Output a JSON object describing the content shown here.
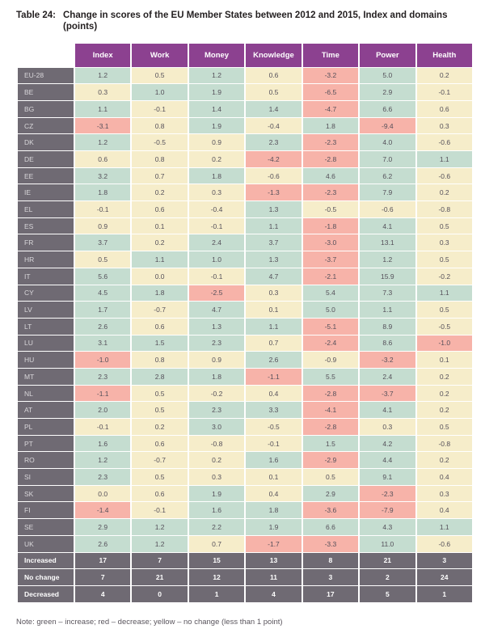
{
  "title": {
    "label": "Table 24:",
    "text": "Change in scores of the EU Member States between 2012 and 2015, Index and domains (points)"
  },
  "note": "Note: green – increase; red – decrease; yellow – no change (less than 1 point)",
  "colors": {
    "header_bg": "#8c4190",
    "header_text": "#ffffff",
    "label_bg": "#6f6a73",
    "label_text": "#d9d7da",
    "cell_text": "#55505a",
    "summary_text": "#ffffff",
    "increase": "#c5ddd0",
    "decrease": "#f7b3a9",
    "no_change": "#f6edca"
  },
  "chart_data": {
    "type": "table",
    "title": "Change in scores of the EU Member States between 2012 and 2015, Index and domains (points)",
    "columns": [
      "Index",
      "Work",
      "Money",
      "Knowledge",
      "Time",
      "Power",
      "Health"
    ],
    "color_rule": {
      "green": "value >= 1 (increase)",
      "red": "value <= -1 (decrease)",
      "yellow": "abs(value) < 1 (no change)"
    },
    "rows": [
      {
        "label": "EU-28",
        "values": [
          "1.2",
          "0.5",
          "1.2",
          "0.6",
          "-3.2",
          "5.0",
          "0.2"
        ]
      },
      {
        "label": "BE",
        "values": [
          "0.3",
          "1.0",
          "1.9",
          "0.5",
          "-6.5",
          "2.9",
          "-0.1"
        ]
      },
      {
        "label": "BG",
        "values": [
          "1.1",
          "-0.1",
          "1.4",
          "1.4",
          "-4.7",
          "6.6",
          "0.6"
        ]
      },
      {
        "label": "CZ",
        "values": [
          "-3.1",
          "0.8",
          "1.9",
          "-0.4",
          "1.8",
          "-9.4",
          "0.3"
        ]
      },
      {
        "label": "DK",
        "values": [
          "1.2",
          "-0.5",
          "0.9",
          "2.3",
          "-2.3",
          "4.0",
          "-0.6"
        ]
      },
      {
        "label": "DE",
        "values": [
          "0.6",
          "0.8",
          "0.2",
          "-4.2",
          "-2.8",
          "7.0",
          "1.1"
        ]
      },
      {
        "label": "EE",
        "values": [
          "3.2",
          "0.7",
          "1.8",
          "-0.6",
          "4.6",
          "6.2",
          "-0.6"
        ]
      },
      {
        "label": "IE",
        "values": [
          "1.8",
          "0.2",
          "0.3",
          "-1.3",
          "-2.3",
          "7.9",
          "0.2"
        ]
      },
      {
        "label": "EL",
        "values": [
          "-0.1",
          "0.6",
          "-0.4",
          "1.3",
          "-0.5",
          "-0.6",
          "-0.8"
        ]
      },
      {
        "label": "ES",
        "values": [
          "0.9",
          "0.1",
          "-0.1",
          "1.1",
          "-1.8",
          "4.1",
          "0.5"
        ]
      },
      {
        "label": "FR",
        "values": [
          "3.7",
          "0.2",
          "2.4",
          "3.7",
          "-3.0",
          "13.1",
          "0.3"
        ]
      },
      {
        "label": "HR",
        "values": [
          "0.5",
          "1.1",
          "1.0",
          "1.3",
          "-3.7",
          "1.2",
          "0.5"
        ]
      },
      {
        "label": "IT",
        "values": [
          "5.6",
          "0.0",
          "-0.1",
          "4.7",
          "-2.1",
          "15.9",
          "-0.2"
        ]
      },
      {
        "label": "CY",
        "values": [
          "4.5",
          "1.8",
          "-2.5",
          "0.3",
          "5.4",
          "7.3",
          "1.1"
        ]
      },
      {
        "label": "LV",
        "values": [
          "1.7",
          "-0.7",
          "4.7",
          "0.1",
          "5.0",
          "1.1",
          "0.5"
        ]
      },
      {
        "label": "LT",
        "values": [
          "2.6",
          "0.6",
          "1.3",
          "1.1",
          "-5.1",
          "8.9",
          "-0.5"
        ]
      },
      {
        "label": "LU",
        "values": [
          "3.1",
          "1.5",
          "2.3",
          "0.7",
          "-2.4",
          "8.6",
          "-1.0"
        ]
      },
      {
        "label": "HU",
        "values": [
          "-1.0",
          "0.8",
          "0.9",
          "2.6",
          "-0.9",
          "-3.2",
          "0.1"
        ]
      },
      {
        "label": "MT",
        "values": [
          "2.3",
          "2.8",
          "1.8",
          "-1.1",
          "5.5",
          "2.4",
          "0.2"
        ]
      },
      {
        "label": "NL",
        "values": [
          "-1.1",
          "0.5",
          "-0.2",
          "0.4",
          "-2.8",
          "-3.7",
          "0.2"
        ]
      },
      {
        "label": "AT",
        "values": [
          "2.0",
          "0.5",
          "2.3",
          "3.3",
          "-4.1",
          "4.1",
          "0.2"
        ]
      },
      {
        "label": "PL",
        "values": [
          "-0.1",
          "0.2",
          "3.0",
          "-0.5",
          "-2.8",
          "0.3",
          "0.5"
        ]
      },
      {
        "label": "PT",
        "values": [
          "1.6",
          "0.6",
          "-0.8",
          "-0.1",
          "1.5",
          "4.2",
          "-0.8"
        ]
      },
      {
        "label": "RO",
        "values": [
          "1.2",
          "-0.7",
          "0.2",
          "1.6",
          "-2.9",
          "4.4",
          "0.2"
        ]
      },
      {
        "label": "SI",
        "values": [
          "2.3",
          "0.5",
          "0.3",
          "0.1",
          "0.5",
          "9.1",
          "0.4"
        ]
      },
      {
        "label": "SK",
        "values": [
          "0.0",
          "0.6",
          "1.9",
          "0.4",
          "2.9",
          "-2.3",
          "0.3"
        ]
      },
      {
        "label": "FI",
        "values": [
          "-1.4",
          "-0.1",
          "1.6",
          "1.8",
          "-3.6",
          "-7.9",
          "0.4"
        ]
      },
      {
        "label": "SE",
        "values": [
          "2.9",
          "1.2",
          "2.2",
          "1.9",
          "6.6",
          "4.3",
          "1.1"
        ]
      },
      {
        "label": "UK",
        "values": [
          "2.6",
          "1.2",
          "0.7",
          "-1.7",
          "-3.3",
          "11.0",
          "-0.6"
        ]
      }
    ],
    "summary_rows": [
      {
        "label": "Increased",
        "values": [
          "17",
          "7",
          "15",
          "13",
          "8",
          "21",
          "3"
        ]
      },
      {
        "label": "No change",
        "values": [
          "7",
          "21",
          "12",
          "11",
          "3",
          "2",
          "24"
        ]
      },
      {
        "label": "Decreased",
        "values": [
          "4",
          "0",
          "1",
          "4",
          "17",
          "5",
          "1"
        ]
      }
    ]
  }
}
